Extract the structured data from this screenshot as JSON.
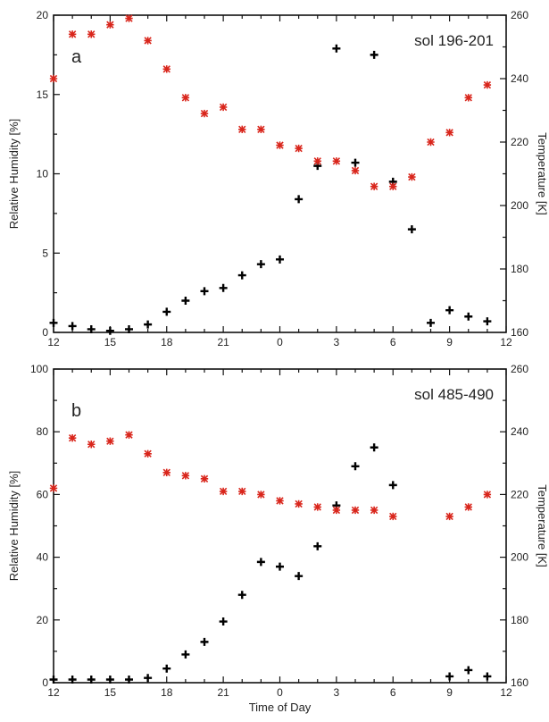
{
  "chart_data": [
    {
      "type": "scatter",
      "panel_label": "a",
      "annotation": "sol 196-201",
      "xlabel": "",
      "ylabel": "Relative Humidity [%]",
      "y2label": "Temperature [K]",
      "x_ticks": [
        "12",
        "15",
        "18",
        "21",
        "0",
        "3",
        "6",
        "9",
        "12"
      ],
      "xlim": [
        12,
        36
      ],
      "ylim": [
        0,
        20
      ],
      "y_ticks": [
        0,
        5,
        10,
        15,
        20
      ],
      "y2lim": [
        160,
        260
      ],
      "y2_ticks": [
        160,
        180,
        200,
        220,
        240,
        260
      ],
      "series": [
        {
          "axis": "left",
          "marker": "cross",
          "color": "#000000",
          "x": [
            12,
            13,
            14,
            15,
            16,
            17,
            18,
            19,
            20,
            21,
            22,
            23,
            24,
            25,
            26,
            27,
            28,
            29,
            30,
            31,
            32,
            33,
            34,
            35
          ],
          "y": [
            0.6,
            0.4,
            0.2,
            0.1,
            0.2,
            0.5,
            1.3,
            2.0,
            2.6,
            2.8,
            3.6,
            4.3,
            4.6,
            8.4,
            10.5,
            17.9,
            10.7,
            17.5,
            9.5,
            6.5,
            0.6,
            1.4,
            1.0,
            0.7
          ]
        },
        {
          "axis": "right",
          "marker": "x",
          "color": "#d9261c",
          "x": [
            12,
            13,
            14,
            15,
            16,
            17,
            18,
            19,
            20,
            21,
            22,
            23,
            24,
            25,
            26,
            27,
            28,
            29,
            30,
            31,
            32,
            33,
            34,
            35
          ],
          "y": [
            240,
            254,
            254,
            257,
            259,
            252,
            243,
            234,
            229,
            231,
            224,
            224,
            219,
            218,
            214,
            214,
            211,
            206,
            206,
            209,
            220,
            223,
            234,
            238
          ]
        }
      ]
    },
    {
      "type": "scatter",
      "panel_label": "b",
      "annotation": "sol 485-490",
      "xlabel": "Time of Day",
      "ylabel": "Relative Humidity [%]",
      "y2label": "Temperature [K]",
      "x_ticks": [
        "12",
        "15",
        "18",
        "21",
        "0",
        "3",
        "6",
        "9",
        "12"
      ],
      "xlim": [
        12,
        36
      ],
      "ylim": [
        0,
        100
      ],
      "y_ticks": [
        0,
        20,
        40,
        60,
        80,
        100
      ],
      "y2lim": [
        160,
        260
      ],
      "y2_ticks": [
        160,
        180,
        200,
        220,
        240,
        260
      ],
      "series": [
        {
          "axis": "left",
          "marker": "cross",
          "color": "#000000",
          "x": [
            12,
            13,
            14,
            15,
            16,
            17,
            18,
            19,
            20,
            21,
            22,
            23,
            24,
            25,
            26,
            27,
            28,
            29,
            30,
            33,
            34,
            35
          ],
          "y": [
            1,
            1,
            1,
            1,
            1,
            1.5,
            4.5,
            9,
            13,
            19.5,
            28,
            38.5,
            37,
            34,
            43.5,
            56.5,
            69,
            75,
            63,
            2,
            4,
            2
          ]
        },
        {
          "axis": "right",
          "marker": "x",
          "color": "#d9261c",
          "x": [
            12,
            13,
            14,
            15,
            16,
            17,
            18,
            19,
            20,
            21,
            22,
            23,
            24,
            25,
            26,
            27,
            28,
            29,
            30,
            33,
            34,
            35
          ],
          "y": [
            222,
            238,
            236,
            237,
            239,
            233,
            227,
            226,
            225,
            221,
            221,
            220,
            218,
            217,
            216,
            215,
            215,
            215,
            213,
            213,
            216,
            220
          ]
        }
      ]
    }
  ]
}
